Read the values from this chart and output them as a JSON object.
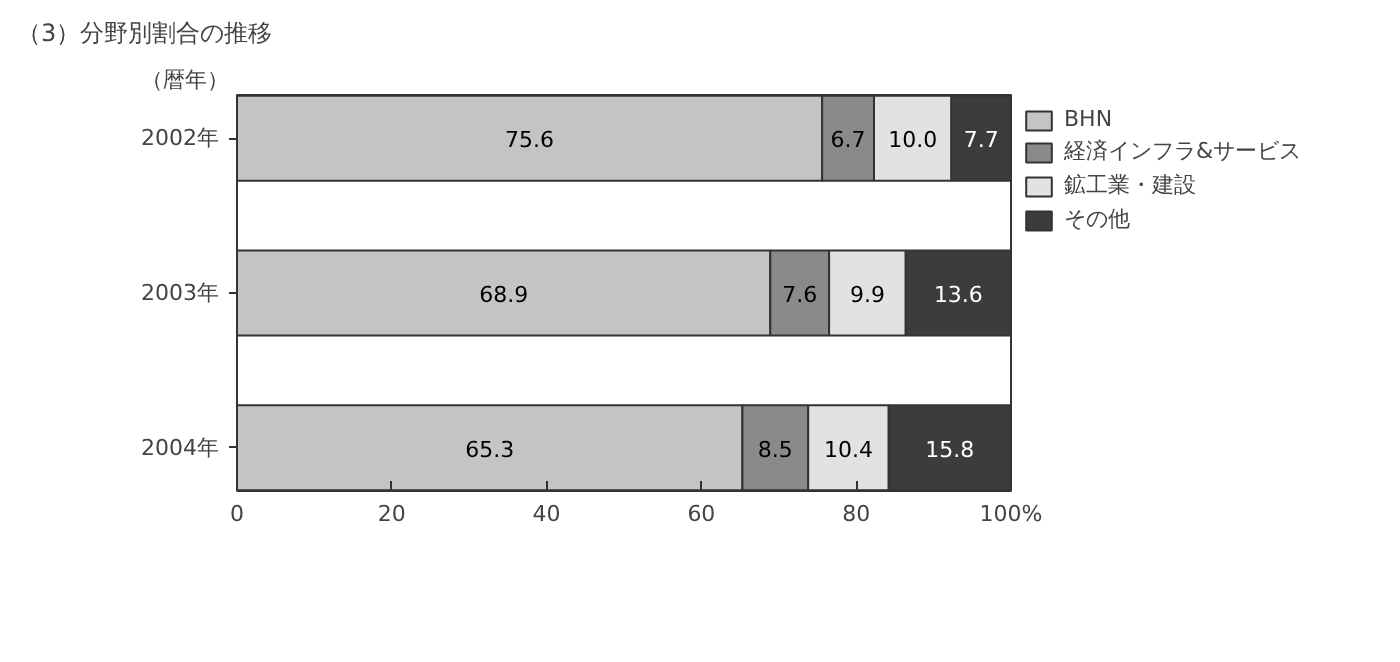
{
  "chart_data": {
    "type": "bar",
    "orientation": "horizontal",
    "stacked": true,
    "title": "（3）分野別割合の推移",
    "ylabel": "（暦年）",
    "categories": [
      "2002年",
      "2003年",
      "2004年"
    ],
    "series": [
      {
        "name": "BHN",
        "color": "#c4c4c4",
        "values": [
          75.6,
          68.9,
          65.3
        ],
        "value_labels": [
          "75.6",
          "68.9",
          "65.3"
        ]
      },
      {
        "name": "経済インフラ&サービス",
        "color": "#8a8a8a",
        "values": [
          6.7,
          7.6,
          8.5
        ],
        "value_labels": [
          "6.7",
          "7.6",
          "8.5"
        ]
      },
      {
        "name": "鉱工業・建設",
        "color": "#e2e2e2",
        "values": [
          10.0,
          9.9,
          10.4
        ],
        "value_labels": [
          "10.0",
          "9.9",
          "10.4"
        ]
      },
      {
        "name": "その他",
        "color": "#3c3c3c",
        "values": [
          7.7,
          13.6,
          15.8
        ],
        "value_labels": [
          "7.7",
          "13.6",
          "15.8"
        ]
      }
    ],
    "xlim": [
      0,
      100
    ],
    "xticks": [
      0,
      20,
      40,
      60,
      80,
      {
        "value": 100,
        "label": "100%"
      }
    ],
    "grid": false,
    "legend": "right"
  }
}
